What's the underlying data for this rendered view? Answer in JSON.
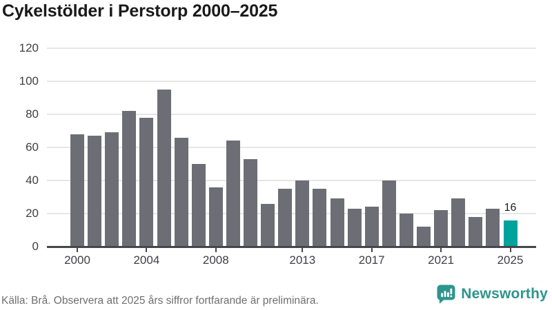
{
  "title": "Cykelstölder i Perstorp 2000–2025",
  "chart_data": {
    "type": "bar",
    "title": "Cykelstölder i Perstorp 2000–2025",
    "categories": [
      2000,
      2001,
      2002,
      2003,
      2004,
      2005,
      2006,
      2007,
      2008,
      2009,
      2010,
      2011,
      2012,
      2013,
      2014,
      2015,
      2016,
      2017,
      2018,
      2019,
      2020,
      2021,
      2022,
      2023,
      2024,
      2025
    ],
    "values": [
      68,
      67,
      69,
      82,
      78,
      95,
      66,
      50,
      36,
      64,
      53,
      26,
      35,
      40,
      35,
      29,
      23,
      24,
      40,
      20,
      12,
      22,
      29,
      18,
      23,
      16
    ],
    "xlabel": "",
    "ylabel": "",
    "ylim": [
      0,
      120
    ],
    "yticks": [
      0,
      20,
      40,
      60,
      80,
      100,
      120
    ],
    "xtick_labels": [
      "2000",
      "2004",
      "2008",
      "2013",
      "2017",
      "2021",
      "2025"
    ],
    "grid": true,
    "legend_position": "none",
    "bar_color": "#6d6d75",
    "highlight": {
      "category": 2025,
      "value": 16,
      "label": "16",
      "color": "#00a39b"
    }
  },
  "annotation": {
    "last_value_label": "16"
  },
  "footer": {
    "source": "Källa: Brå. Observera att 2025 års siffror fortfarande är preliminära.",
    "brand": "Newsworthy"
  },
  "colors": {
    "bar": "#6d6d75",
    "highlight": "#00a39b",
    "grid": "#e6e6e6",
    "axis": "#45454b",
    "brand_teal": "#2d958d",
    "title_text": "#1a1a1a",
    "tick_text": "#3f3f44",
    "source_text": "#6e6e6e"
  }
}
